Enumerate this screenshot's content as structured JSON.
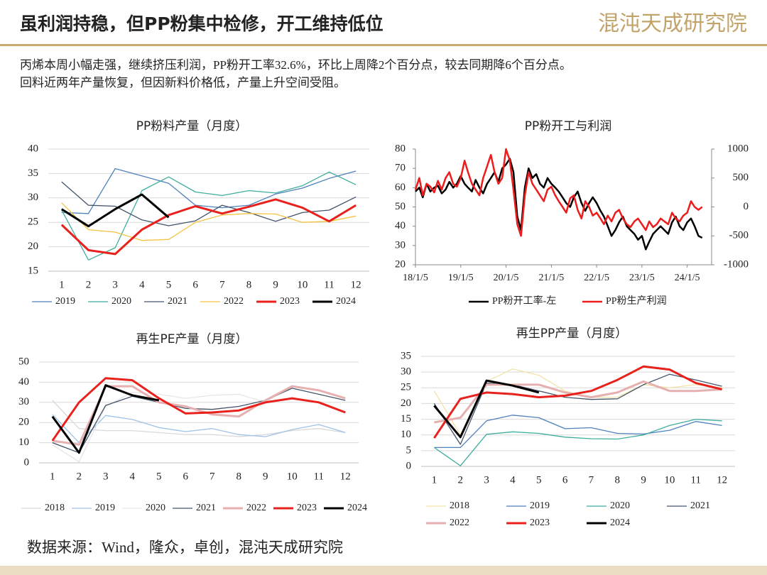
{
  "header": {
    "title": "虽利润持稳，但PP粉集中检修，开工维持低位",
    "logo": "混沌天成研究院"
  },
  "notes": [
    "丙烯本周小幅走强，继续挤压利润，PP粉开工率32.6%，环比上周降2个百分点，较去同期降6个百分点。",
    "回料近两年产量恢复，但因新料价格低，产量上升空间受阻。"
  ],
  "source": "数据来源：Wind，隆众，卓创，混沌天成研究院",
  "chart_data": [
    {
      "type": "line",
      "title": "PP粉料产量（月度）",
      "grid": true,
      "categories": [
        "1",
        "2",
        "3",
        "4",
        "5",
        "6",
        "7",
        "8",
        "9",
        "10",
        "11",
        "12"
      ],
      "ylim": [
        15,
        40
      ],
      "yticks": [
        15,
        20,
        25,
        30,
        35,
        40
      ],
      "series": [
        {
          "name": "2019",
          "color": "#4e81bd",
          "width": 1.3,
          "values": [
            27,
            26.8,
            36,
            34.5,
            33,
            28.5,
            28,
            28.5,
            30.8,
            32,
            34,
            35.5
          ]
        },
        {
          "name": "2020",
          "color": "#3fae9e",
          "width": 1.3,
          "values": [
            27.5,
            17.3,
            19.8,
            31.5,
            34.3,
            31.2,
            30.5,
            31.5,
            31,
            32.5,
            35.3,
            32.7
          ]
        },
        {
          "name": "2021",
          "color": "#44546a",
          "width": 1.3,
          "values": [
            33.3,
            28.5,
            28.3,
            25.5,
            24.3,
            25.3,
            28.5,
            27,
            25.2,
            27,
            27.5,
            30.2
          ]
        },
        {
          "name": "2022",
          "color": "#f5c342",
          "width": 1.3,
          "values": [
            29,
            23.5,
            23,
            21.3,
            21.5,
            25,
            26.5,
            26.8,
            26.7,
            25,
            25.2,
            26.3
          ]
        },
        {
          "name": "2023",
          "color": "#e8211c",
          "width": 3,
          "values": [
            24.5,
            19.3,
            18.5,
            23.5,
            26.5,
            28.3,
            26.8,
            28.2,
            29.7,
            28,
            25.2,
            28.5
          ]
        },
        {
          "name": "2024",
          "color": "#000000",
          "width": 3,
          "values": [
            27.7,
            24.2,
            27.7,
            30.7,
            26,
            null,
            null,
            null,
            null,
            null,
            null,
            null
          ]
        }
      ]
    },
    {
      "type": "timeseries",
      "title": "PP粉开工与利润",
      "grid": false,
      "x": [
        "2018-01-05",
        "2018-02-05",
        "2018-03-05",
        "2018-04-05",
        "2018-05-05",
        "2018-06-05",
        "2018-07-05",
        "2018-08-05",
        "2018-09-05",
        "2018-10-05",
        "2018-11-05",
        "2018-12-05",
        "2019-01-05",
        "2019-02-05",
        "2019-03-05",
        "2019-04-05",
        "2019-05-05",
        "2019-06-05",
        "2019-07-05",
        "2019-08-05",
        "2019-09-05",
        "2019-10-05",
        "2019-11-05",
        "2019-12-05",
        "2020-01-05",
        "2020-02-05",
        "2020-03-05",
        "2020-04-05",
        "2020-05-05",
        "2020-06-05",
        "2020-07-05",
        "2020-08-05",
        "2020-09-05",
        "2020-10-05",
        "2020-11-05",
        "2020-12-05",
        "2021-01-05",
        "2021-02-05",
        "2021-03-05",
        "2021-04-05",
        "2021-05-05",
        "2021-06-05",
        "2021-07-05",
        "2021-08-05",
        "2021-09-05",
        "2021-10-05",
        "2021-11-05",
        "2021-12-05",
        "2022-01-05",
        "2022-02-05",
        "2022-03-05",
        "2022-04-05",
        "2022-05-05",
        "2022-06-05",
        "2022-07-05",
        "2022-08-05",
        "2022-09-05",
        "2022-10-05",
        "2022-11-05",
        "2022-12-05",
        "2023-01-05",
        "2023-02-05",
        "2023-03-05",
        "2023-04-05",
        "2023-05-05",
        "2023-06-05",
        "2023-07-05",
        "2023-08-05",
        "2023-09-05",
        "2023-10-05",
        "2023-11-05",
        "2023-12-05",
        "2024-01-05",
        "2024-02-05",
        "2024-03-05",
        "2024-04-05",
        "2024-05-05"
      ],
      "xlim": [
        "2018-01-05",
        "2024-07-20"
      ],
      "xticks": [
        {
          "value": "2018-01-05",
          "label": "18/1/5"
        },
        {
          "value": "2019-01-05",
          "label": "19/1/5"
        },
        {
          "value": "2020-01-05",
          "label": "20/1/5"
        },
        {
          "value": "2021-01-05",
          "label": "21/1/5"
        },
        {
          "value": "2022-01-05",
          "label": "22/1/5"
        },
        {
          "value": "2023-01-05",
          "label": "23/1/5"
        },
        {
          "value": "2024-01-05",
          "label": "24/1/5"
        }
      ],
      "ylim": [
        20,
        80
      ],
      "yticks": [
        20,
        30,
        40,
        50,
        60,
        70,
        80
      ],
      "y2lim": [
        -1000,
        1000
      ],
      "y2ticks": [
        -1000,
        -500,
        0,
        500,
        1000
      ],
      "series": [
        {
          "name": "PP粉开工率-左",
          "color": "#000000",
          "width": 2.5,
          "axis": "y",
          "values": [
            58,
            60,
            55,
            62,
            58,
            60,
            61,
            57,
            59,
            63,
            60,
            62,
            66,
            62,
            60,
            58,
            64,
            60,
            57,
            62,
            65,
            68,
            63,
            70,
            72,
            75,
            68,
            45,
            38,
            60,
            70,
            65,
            67,
            62,
            60,
            65,
            62,
            60,
            58,
            55,
            52,
            50,
            55,
            58,
            52,
            48,
            52,
            55,
            52,
            48,
            45,
            40,
            35,
            38,
            42,
            45,
            40,
            38,
            36,
            33,
            35,
            28,
            32,
            36,
            38,
            40,
            38,
            36,
            42,
            45,
            40,
            38,
            42,
            44,
            40,
            35,
            34
          ]
        },
        {
          "name": "PP粉生产利润",
          "color": "#ee1c1c",
          "width": 2.5,
          "axis": "y2",
          "values": [
            300,
            500,
            200,
            400,
            350,
            250,
            450,
            300,
            500,
            600,
            400,
            350,
            500,
            800,
            600,
            400,
            300,
            200,
            500,
            700,
            900,
            600,
            400,
            500,
            1000,
            800,
            300,
            -300,
            -500,
            200,
            600,
            400,
            300,
            200,
            100,
            300,
            350,
            200,
            100,
            0,
            -100,
            150,
            200,
            -50,
            -200,
            100,
            0,
            -150,
            -100,
            -200,
            -300,
            -150,
            -250,
            -100,
            -50,
            -200,
            -300,
            -350,
            -250,
            -200,
            -300,
            -400,
            -250,
            -350,
            -300,
            -200,
            -250,
            -300,
            -100,
            -200,
            -250,
            -150,
            -100,
            100,
            0,
            -50,
            0
          ]
        }
      ]
    },
    {
      "type": "line",
      "title": "再生PE产量（月度）",
      "grid": true,
      "categories": [
        "1",
        "2",
        "3",
        "4",
        "5",
        "6",
        "7",
        "8",
        "9",
        "10",
        "11",
        "12"
      ],
      "ylim": [
        0,
        50
      ],
      "yticks": [
        0,
        10,
        20,
        30,
        40,
        50
      ],
      "series": [
        {
          "name": "2018",
          "color": "#d9d9d9",
          "width": 1.3,
          "values": [
            31,
            17,
            16,
            16,
            15,
            14,
            14,
            13,
            14,
            16,
            17,
            15
          ]
        },
        {
          "name": "2019",
          "color": "#9dc3e6",
          "width": 1.3,
          "values": [
            24,
            10,
            23.5,
            21.5,
            17.5,
            15.5,
            17,
            14,
            13,
            16.5,
            19,
            15
          ]
        },
        {
          "name": "2020",
          "color": "#e6e6e6",
          "width": 1.3,
          "values": [
            9,
            0.5,
            28,
            35,
            34,
            32,
            33.5,
            34,
            30,
            38,
            36,
            32
          ]
        },
        {
          "name": "2021",
          "color": "#44546a",
          "width": 1.3,
          "values": [
            10,
            5,
            28.5,
            33,
            30,
            27,
            26.5,
            28,
            31,
            37,
            34,
            31
          ]
        },
        {
          "name": "2022",
          "color": "#e6b0b0",
          "width": 3,
          "values": [
            11,
            9,
            38,
            38,
            30,
            28,
            24,
            23,
            31,
            38,
            36,
            32
          ]
        },
        {
          "name": "2023",
          "color": "#e8211c",
          "width": 3,
          "values": [
            11,
            30,
            42,
            41,
            32,
            24.5,
            25,
            26,
            30,
            32,
            30,
            25
          ]
        },
        {
          "name": "2024",
          "color": "#000000",
          "width": 3,
          "values": [
            23,
            5,
            38.5,
            33.5,
            31,
            null,
            null,
            null,
            null,
            null,
            null,
            null
          ]
        }
      ]
    },
    {
      "type": "line",
      "title": "再生PP产量（月度）",
      "grid": true,
      "categories": [
        "1",
        "2",
        "3",
        "4",
        "5",
        "6",
        "7",
        "8",
        "9",
        "10",
        "11",
        "12"
      ],
      "ylim": [
        0,
        35
      ],
      "yticks": [
        0,
        5,
        10,
        15,
        20,
        25,
        30,
        35
      ],
      "series": [
        {
          "name": "2018",
          "color": "#f3e3a8",
          "width": 1.3,
          "values": [
            24,
            10,
            27,
            31,
            29,
            24,
            22,
            22,
            26,
            25,
            26,
            25
          ]
        },
        {
          "name": "2019",
          "color": "#4e81bd",
          "width": 1.3,
          "values": [
            6,
            6,
            14.5,
            16.3,
            15.5,
            12,
            12.3,
            10.5,
            10.3,
            11.5,
            14.3,
            13
          ]
        },
        {
          "name": "2020",
          "color": "#3fae9e",
          "width": 1.3,
          "values": [
            6,
            0.2,
            10.2,
            11,
            10.5,
            9.3,
            8.8,
            8.7,
            10,
            13,
            15,
            14.5
          ]
        },
        {
          "name": "2021",
          "color": "#44546a",
          "width": 1.3,
          "values": [
            20,
            7,
            26.5,
            26,
            24,
            22,
            21.3,
            21.5,
            26,
            29.3,
            27.5,
            25.5
          ]
        },
        {
          "name": "2022",
          "color": "#e6b0b0",
          "width": 3,
          "values": [
            14,
            15.5,
            26,
            26,
            26,
            23.5,
            22,
            23.5,
            27,
            24,
            24,
            24.5
          ]
        },
        {
          "name": "2023",
          "color": "#e8211c",
          "width": 3,
          "values": [
            9,
            21.5,
            23.5,
            23,
            22,
            22.5,
            24,
            27.5,
            31.8,
            30.8,
            26.5,
            24.5
          ]
        },
        {
          "name": "2024",
          "color": "#000000",
          "width": 3,
          "values": [
            19.3,
            9.3,
            27.3,
            25.7,
            23.5,
            null,
            null,
            null,
            null,
            null,
            null,
            null
          ]
        }
      ]
    }
  ]
}
